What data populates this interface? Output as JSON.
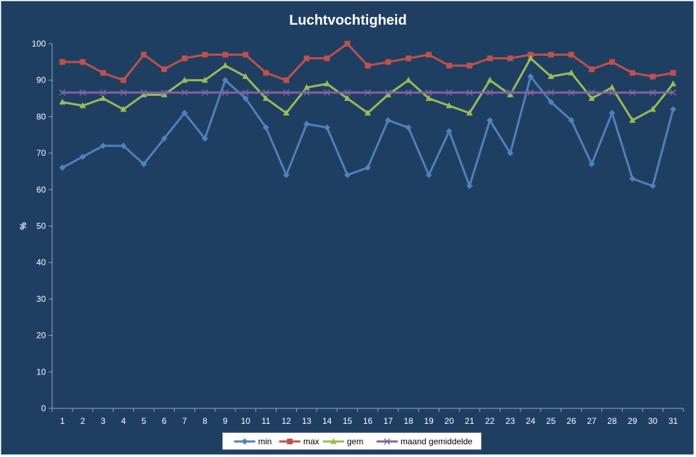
{
  "chart_data": {
    "type": "line",
    "title": "Luchtvochtigheid",
    "xlabel": "",
    "ylabel": "%",
    "x": [
      1,
      2,
      3,
      4,
      5,
      6,
      7,
      8,
      9,
      10,
      11,
      12,
      13,
      14,
      15,
      16,
      17,
      18,
      19,
      20,
      21,
      22,
      23,
      24,
      25,
      26,
      27,
      28,
      29,
      30,
      31
    ],
    "ylim": [
      0,
      100
    ],
    "yticks": [
      0,
      10,
      20,
      30,
      40,
      50,
      60,
      70,
      80,
      90,
      100
    ],
    "grid": false,
    "legend_position": "bottom",
    "series": [
      {
        "name": "min",
        "color": "#4f81bd",
        "marker": "diamond",
        "values": [
          66,
          69,
          72,
          72,
          67,
          74,
          81,
          74,
          90,
          85,
          77,
          64,
          78,
          77,
          64,
          66,
          79,
          77,
          64,
          76,
          61,
          79,
          70,
          91,
          84,
          79,
          67,
          81,
          63,
          61,
          82
        ]
      },
      {
        "name": "max",
        "color": "#c0504d",
        "marker": "square",
        "values": [
          95,
          95,
          92,
          90,
          97,
          93,
          96,
          97,
          97,
          97,
          92,
          90,
          96,
          96,
          100,
          94,
          95,
          96,
          97,
          94,
          94,
          96,
          96,
          97,
          97,
          97,
          93,
          95,
          92,
          91,
          92
        ]
      },
      {
        "name": "gem",
        "color": "#9bbb59",
        "marker": "triangle",
        "values": [
          84,
          83,
          85,
          82,
          86,
          86,
          90,
          90,
          94,
          91,
          85,
          81,
          88,
          89,
          85,
          81,
          86,
          90,
          85,
          83,
          81,
          90,
          86,
          96,
          91,
          92,
          85,
          88,
          79,
          82,
          89
        ]
      },
      {
        "name": "maand gemiddelde",
        "color": "#8064a2",
        "marker": "x",
        "values": [
          86.6,
          86.6,
          86.6,
          86.6,
          86.6,
          86.6,
          86.6,
          86.6,
          86.6,
          86.6,
          86.6,
          86.6,
          86.6,
          86.6,
          86.6,
          86.6,
          86.6,
          86.6,
          86.6,
          86.6,
          86.6,
          86.6,
          86.6,
          86.6,
          86.6,
          86.6,
          86.6,
          86.6,
          86.6,
          86.6,
          86.6
        ]
      }
    ]
  }
}
